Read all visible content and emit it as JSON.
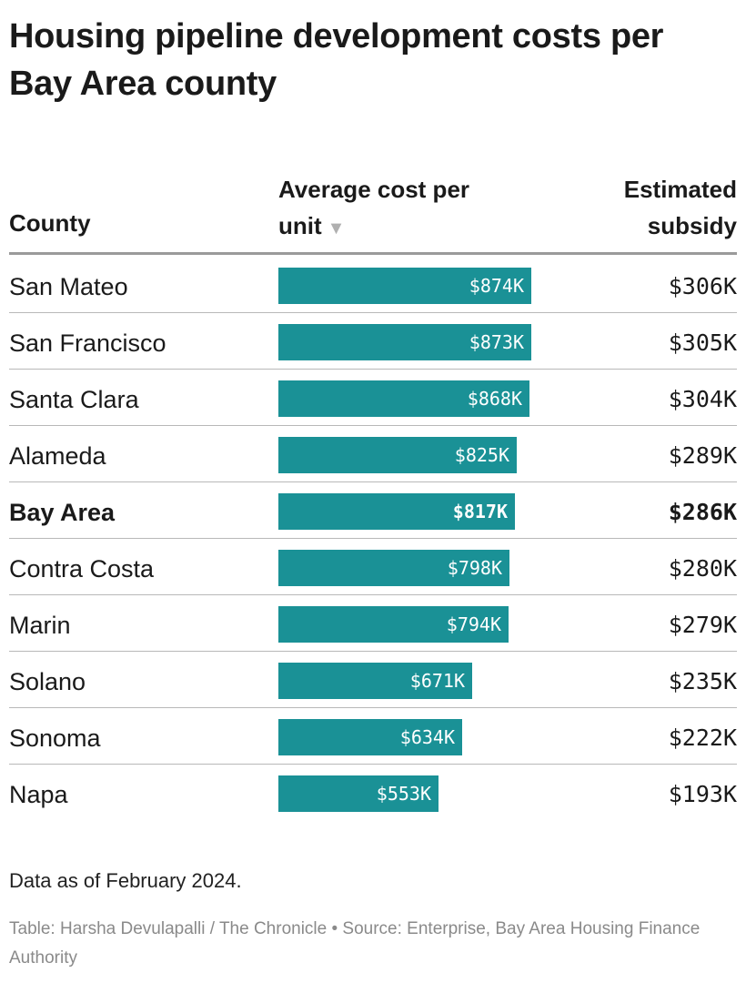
{
  "title": "Housing pipeline development costs per Bay Area county",
  "table": {
    "headers": {
      "county": "County",
      "cost": "Average cost per unit",
      "subsidy": "Estimated subsidy",
      "sort_indicator": "▼"
    }
  },
  "chart_data": {
    "type": "table",
    "title": "Housing pipeline development costs per Bay Area county",
    "columns": [
      "County",
      "Average cost per unit",
      "Estimated subsidy"
    ],
    "value_unit": "$K",
    "cost_scale_max": 874,
    "rows": [
      {
        "county": "San Mateo",
        "cost": 874,
        "cost_label": "$874K",
        "subsidy_label": "$306K",
        "bold": false
      },
      {
        "county": "San Francisco",
        "cost": 873,
        "cost_label": "$873K",
        "subsidy_label": "$305K",
        "bold": false
      },
      {
        "county": "Santa Clara",
        "cost": 868,
        "cost_label": "$868K",
        "subsidy_label": "$304K",
        "bold": false
      },
      {
        "county": "Alameda",
        "cost": 825,
        "cost_label": "$825K",
        "subsidy_label": "$289K",
        "bold": false
      },
      {
        "county": "Bay Area",
        "cost": 817,
        "cost_label": "$817K",
        "subsidy_label": "$286K",
        "bold": true
      },
      {
        "county": "Contra Costa",
        "cost": 798,
        "cost_label": "$798K",
        "subsidy_label": "$280K",
        "bold": false
      },
      {
        "county": "Marin",
        "cost": 794,
        "cost_label": "$794K",
        "subsidy_label": "$279K",
        "bold": false
      },
      {
        "county": "Solano",
        "cost": 671,
        "cost_label": "$671K",
        "subsidy_label": "$235K",
        "bold": false
      },
      {
        "county": "Sonoma",
        "cost": 634,
        "cost_label": "$634K",
        "subsidy_label": "$222K",
        "bold": false
      },
      {
        "county": "Napa",
        "cost": 553,
        "cost_label": "$553K",
        "subsidy_label": "$193K",
        "bold": false
      }
    ]
  },
  "notes": "Data as of February 2024.",
  "credit": "Table: Harsha Devulapalli / The Chronicle • Source: Enterprise, Bay Area Housing Finance Authority",
  "colors": {
    "bar": "#1a9196",
    "rule": "#9a9a9a",
    "muted": "#8a8a8a"
  }
}
